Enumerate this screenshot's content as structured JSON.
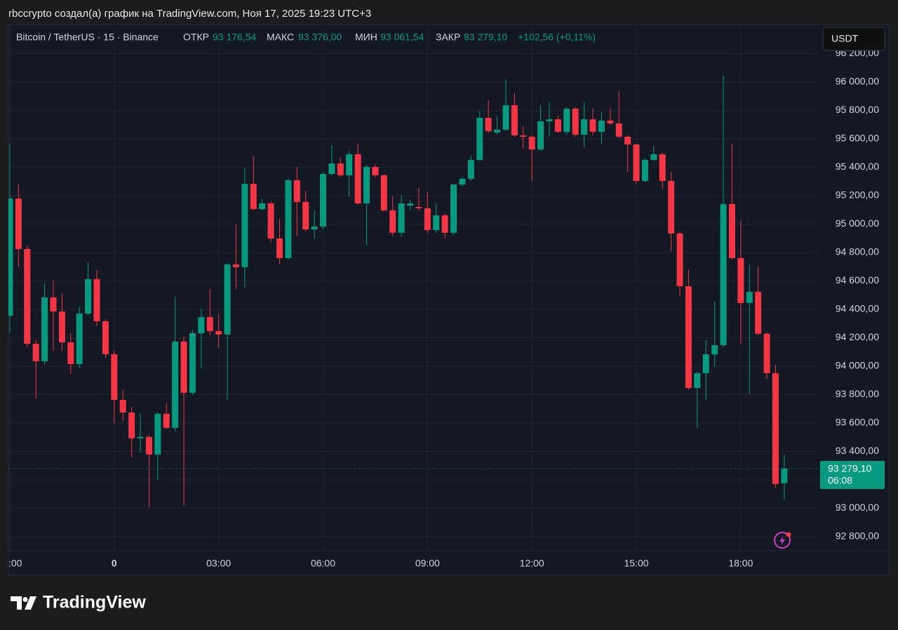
{
  "caption": "rbccrypto создал(а) график на TradingView.com, Ноя 17, 2025 19:23 UTC+3",
  "legend": {
    "symbol": "Bitcoin / TetherUS · 15 · Binance",
    "open_label": "ОТКР",
    "open_value": "93 176,54",
    "high_label": "МАКС",
    "high_value": "93 376,00",
    "low_label": "МИН",
    "low_value": "93 061,54",
    "close_label": "ЗАКР",
    "close_value": "93 279,10",
    "change": "+102,56 (+0,11%)"
  },
  "currency_button": "USDT",
  "last_price": {
    "label": "93 279,10",
    "countdown": "06:08"
  },
  "logo": "TradingView",
  "chart_data": {
    "type": "candlestick",
    "up_color": "#089981",
    "down_color": "#f23645",
    "grid": true,
    "x": [
      -3,
      -2.75,
      -2.5,
      -2.25,
      -2,
      -1.75,
      -1.5,
      -1.25,
      -1,
      -0.75,
      -0.5,
      -0.25,
      0,
      0.25,
      0.5,
      0.75,
      1,
      1.25,
      1.5,
      1.75,
      2,
      2.25,
      2.5,
      2.75,
      3,
      3.25,
      3.5,
      3.75,
      4,
      4.25,
      4.5,
      4.75,
      5,
      5.25,
      5.5,
      5.75,
      6,
      6.25,
      6.5,
      6.75,
      7,
      7.25,
      7.5,
      7.75,
      8,
      8.25,
      8.5,
      8.75,
      9,
      9.25,
      9.5,
      9.75,
      10,
      10.25,
      10.5,
      10.75,
      11,
      11.25,
      11.5,
      11.75,
      12,
      12.25,
      12.5,
      12.75,
      13,
      13.25,
      13.5,
      13.75,
      14,
      14.25,
      14.5,
      14.75,
      15,
      15.25,
      15.5,
      15.75,
      16,
      16.25,
      16.5,
      16.75,
      17,
      17.25,
      17.5,
      17.75,
      18,
      18.25,
      18.5,
      18.75,
      19,
      19.25
    ],
    "open": [
      94356,
      95180,
      94825,
      94158,
      94035,
      94484,
      94385,
      94168,
      94015,
      94371,
      94613,
      94316,
      94084,
      93763,
      93674,
      93492,
      93502,
      93378,
      93665,
      93566,
      94173,
      93813,
      94232,
      94346,
      94247,
      94223,
      94716,
      94697,
      95284,
      95106,
      95146,
      94899,
      94761,
      95309,
      95156,
      94963,
      94983,
      95353,
      95427,
      95344,
      95492,
      95146,
      95403,
      95344,
      95097,
      94939,
      95131,
      95121,
      95112,
      94958,
      95062,
      94939,
      95279,
      95319,
      95452,
      95748,
      95645,
      95665,
      95837,
      95625,
      95615,
      95526,
      95724,
      95738,
      95650,
      95813,
      95630,
      95738,
      95650,
      95729,
      95709,
      95615,
      95561,
      95304,
      95452,
      95492,
      95304,
      94934,
      94563,
      93847,
      93951,
      94084,
      94148,
      95141,
      94761,
      94445,
      94524,
      94228,
      93951,
      93176.54
    ],
    "high": [
      95566,
      95279,
      94850,
      94183,
      94583,
      94603,
      94514,
      94232,
      94420,
      94731,
      94677,
      94331,
      94109,
      93837,
      93714,
      93665,
      93516,
      93675,
      93739,
      94489,
      94208,
      94257,
      94405,
      94543,
      94366,
      94726,
      94998,
      95393,
      95482,
      95180,
      95161,
      95037,
      95324,
      95403,
      95235,
      95097,
      95368,
      95556,
      95467,
      95516,
      95566,
      95418,
      95423,
      95353,
      95195,
      95205,
      95171,
      95255,
      95230,
      95146,
      95072,
      95284,
      95334,
      95482,
      95798,
      95872,
      95763,
      96020,
      95921,
      95689,
      95625,
      95837,
      95862,
      95763,
      95823,
      95823,
      95862,
      95813,
      95788,
      95813,
      95936,
      95625,
      95566,
      95462,
      95551,
      95502,
      95368,
      94948,
      94677,
      93961,
      94183,
      94455,
      96045,
      95566,
      95023,
      94712,
      94702,
      94237,
      94010,
      93376
    ],
    "low": [
      94232,
      94702,
      94134,
      93773,
      94010,
      94109,
      94109,
      93946,
      93986,
      94356,
      94282,
      94060,
      93600,
      93615,
      93358,
      93393,
      93008,
      93200,
      93556,
      93541,
      93018,
      93798,
      93986,
      94218,
      94134,
      93763,
      94543,
      94553,
      95097,
      95097,
      94874,
      94716,
      94751,
      94914,
      94948,
      94899,
      94963,
      95344,
      95329,
      95195,
      95136,
      94850,
      95329,
      95087,
      94914,
      94909,
      95097,
      95097,
      94934,
      94939,
      94899,
      94924,
      95265,
      95304,
      95442,
      95640,
      95630,
      95655,
      95615,
      95531,
      95304,
      95516,
      95615,
      95640,
      95630,
      95615,
      95541,
      95625,
      95566,
      95699,
      95605,
      95368,
      95284,
      95294,
      95442,
      95245,
      94810,
      94494,
      93833,
      93566,
      93763,
      93995,
      94134,
      94751,
      94158,
      93803,
      94218,
      93911,
      93146,
      93061.54
    ],
    "close": [
      95180,
      94825,
      94158,
      94035,
      94484,
      94385,
      94168,
      94015,
      94371,
      94613,
      94316,
      94084,
      93763,
      93674,
      93492,
      93502,
      93378,
      93665,
      93566,
      94173,
      93813,
      94232,
      94346,
      94247,
      94223,
      94716,
      94697,
      95284,
      95106,
      95146,
      94899,
      94761,
      95309,
      95156,
      94963,
      94983,
      95353,
      95427,
      95344,
      95492,
      95146,
      95403,
      95344,
      95097,
      94939,
      95146,
      95146,
      95112,
      94958,
      95062,
      94939,
      95279,
      95319,
      95452,
      95748,
      95655,
      95665,
      95837,
      95625,
      95615,
      95526,
      95724,
      95738,
      95650,
      95813,
      95630,
      95738,
      95650,
      95729,
      95709,
      95615,
      95561,
      95304,
      95452,
      95492,
      95304,
      94934,
      94563,
      93847,
      93951,
      94084,
      94148,
      95141,
      94761,
      94445,
      94524,
      94228,
      93951,
      93171,
      93279.1
    ],
    "xlim": [
      -3.04,
      20.24
    ],
    "xticks": [
      {
        "value": -3,
        "label": ":00"
      },
      0,
      {
        "value": 3,
        "label": "03:00"
      },
      {
        "value": 6,
        "label": "06:00"
      },
      {
        "value": 9,
        "label": "09:00"
      },
      {
        "value": 12,
        "label": "12:00"
      },
      {
        "value": 15,
        "label": "15:00"
      },
      {
        "value": 18,
        "label": "18:00"
      }
    ],
    "ylim": [
      92701,
      96405
    ],
    "yticks": [
      {
        "value": 92800,
        "label": "92 800,00"
      },
      {
        "value": 93000,
        "label": "93 000,00"
      },
      {
        "value": 93200,
        "label": "93 200,00"
      },
      {
        "value": 93400,
        "label": "93 400,00"
      },
      {
        "value": 93600,
        "label": "93 600,00"
      },
      {
        "value": 93800,
        "label": "93 800,00"
      },
      {
        "value": 94000,
        "label": "94 000,00"
      },
      {
        "value": 94200,
        "label": "94 200,00"
      },
      {
        "value": 94400,
        "label": "94 400,00"
      },
      {
        "value": 94600,
        "label": "94 600,00"
      },
      {
        "value": 94800,
        "label": "94 800,00"
      },
      {
        "value": 95000,
        "label": "95 000,00"
      },
      {
        "value": 95200,
        "label": "95 200,00"
      },
      {
        "value": 95400,
        "label": "95 400,00"
      },
      {
        "value": 95600,
        "label": "95 600,00"
      },
      {
        "value": 95800,
        "label": "95 800,00"
      },
      {
        "value": 96000,
        "label": "96 000,00"
      },
      {
        "value": 96200,
        "label": "96 200,00"
      }
    ]
  }
}
